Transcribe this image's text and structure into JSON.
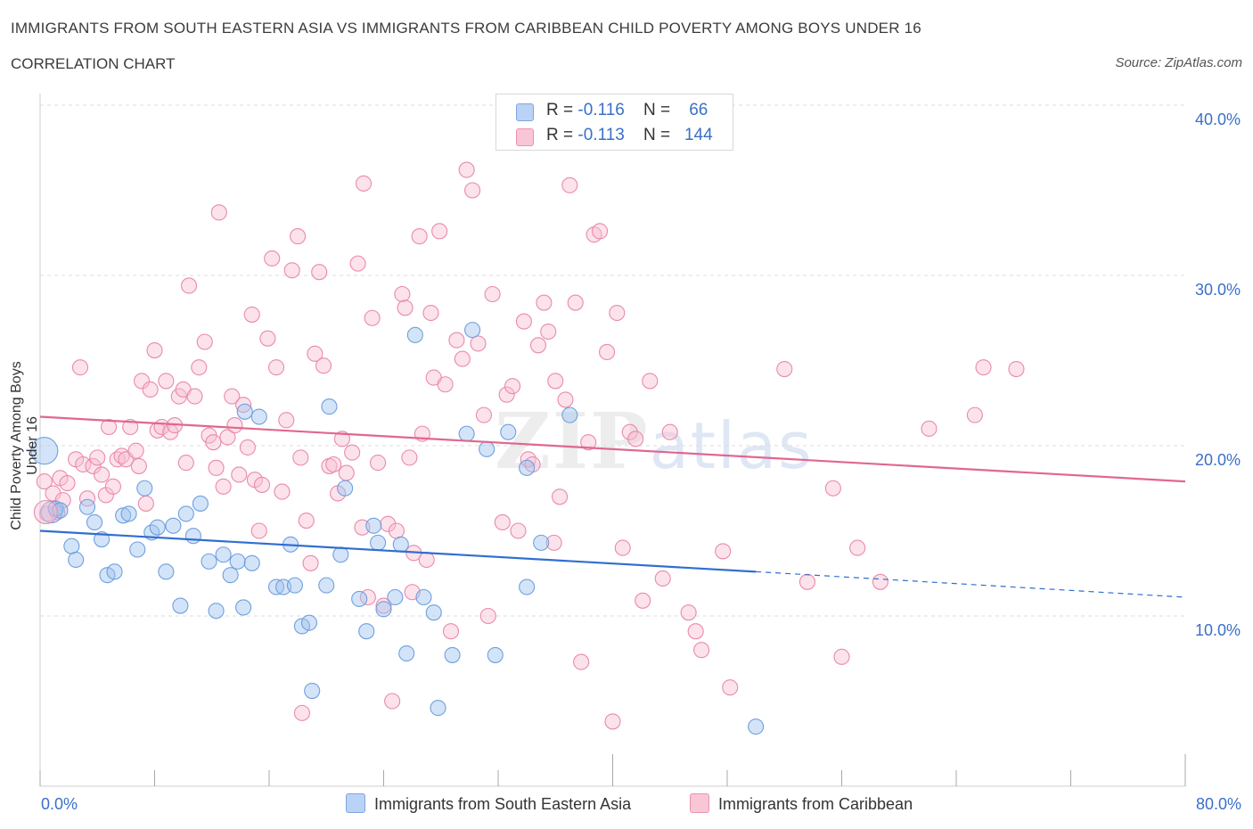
{
  "header": {
    "title": "IMMIGRANTS FROM SOUTH EASTERN ASIA VS IMMIGRANTS FROM CARIBBEAN CHILD POVERTY AMONG BOYS UNDER 16",
    "subtitle": "CORRELATION CHART",
    "source": "Source: ZipAtlas.com"
  },
  "watermark": {
    "main": "ZIP",
    "sub": "atlas"
  },
  "legend": {
    "rows": [
      {
        "r_label": "R =",
        "r_value": "-0.116",
        "n_label": "N =",
        "n_value": "66",
        "color": "#b9d2f5",
        "border": "#7ea6e0"
      },
      {
        "r_label": "R =",
        "r_value": "-0.113",
        "n_label": "N =",
        "n_value": "144",
        "color": "#f9c6d6",
        "border": "#ea93b0"
      }
    ]
  },
  "bottom_legend": [
    {
      "label": "Immigrants from South Eastern Asia",
      "color": "#b9d2f5",
      "border": "#7ea6e0"
    },
    {
      "label": "Immigrants from Caribbean",
      "color": "#f9c6d6",
      "border": "#ea93b0"
    }
  ],
  "colors": {
    "blue_fill": "rgba(160,195,240,0.45)",
    "blue_stroke": "#6f9fdf",
    "blue_line": "#2f6fcf",
    "pink_fill": "rgba(248,190,210,0.45)",
    "pink_stroke": "#e98aab",
    "pink_line": "#e0678f",
    "axis_text": "#3a6fc9"
  },
  "chart_data": {
    "type": "scatter",
    "title": "IMMIGRANTS FROM SOUTH EASTERN ASIA VS IMMIGRANTS FROM CARIBBEAN CHILD POVERTY AMONG BOYS UNDER 16",
    "xlabel": "",
    "ylabel": "Child Poverty Among Boys Under 16",
    "xlim": [
      0,
      80
    ],
    "ylim": [
      0,
      40
    ],
    "x_tick_labels": [
      "0.0%",
      "80.0%"
    ],
    "y_tick_labels": [
      "10.0%",
      "20.0%",
      "30.0%",
      "40.0%"
    ],
    "y_ticks": [
      10,
      20,
      30,
      40
    ],
    "grid": true,
    "legend_placement": "top-center",
    "series": [
      {
        "name": "Immigrants from South Eastern Asia",
        "trend": {
          "x": [
            0,
            50
          ],
          "y": [
            15.0,
            12.6
          ],
          "dashed_to": [
            80,
            11.1
          ]
        },
        "points": [
          [
            0.3,
            19.7
          ],
          [
            0.8,
            16.1
          ],
          [
            1.1,
            16.3
          ],
          [
            1.4,
            16.2
          ],
          [
            2.2,
            14.1
          ],
          [
            2.5,
            13.3
          ],
          [
            3.3,
            16.4
          ],
          [
            3.8,
            15.5
          ],
          [
            4.3,
            14.5
          ],
          [
            4.7,
            12.4
          ],
          [
            5.2,
            12.6
          ],
          [
            5.8,
            15.9
          ],
          [
            6.2,
            16.0
          ],
          [
            6.8,
            13.9
          ],
          [
            7.3,
            17.5
          ],
          [
            7.8,
            14.9
          ],
          [
            8.2,
            15.2
          ],
          [
            8.8,
            12.6
          ],
          [
            9.3,
            15.3
          ],
          [
            9.8,
            10.6
          ],
          [
            10.2,
            16.0
          ],
          [
            10.7,
            14.7
          ],
          [
            11.2,
            16.6
          ],
          [
            11.8,
            13.2
          ],
          [
            12.3,
            10.3
          ],
          [
            12.8,
            13.6
          ],
          [
            13.3,
            12.4
          ],
          [
            13.8,
            13.2
          ],
          [
            14.2,
            10.5
          ],
          [
            14.8,
            13.1
          ],
          [
            15.3,
            21.7
          ],
          [
            14.3,
            22.0
          ],
          [
            16.5,
            11.7
          ],
          [
            17.0,
            11.7
          ],
          [
            17.5,
            14.2
          ],
          [
            17.8,
            11.8
          ],
          [
            18.3,
            9.4
          ],
          [
            18.8,
            9.6
          ],
          [
            19.0,
            5.6
          ],
          [
            20.0,
            11.8
          ],
          [
            20.2,
            22.3
          ],
          [
            21.0,
            13.6
          ],
          [
            21.3,
            17.5
          ],
          [
            22.3,
            11.0
          ],
          [
            22.8,
            9.1
          ],
          [
            23.3,
            15.3
          ],
          [
            23.6,
            14.3
          ],
          [
            24.0,
            10.4
          ],
          [
            24.8,
            11.1
          ],
          [
            25.2,
            14.2
          ],
          [
            25.6,
            7.8
          ],
          [
            26.2,
            26.5
          ],
          [
            26.8,
            11.1
          ],
          [
            27.5,
            10.2
          ],
          [
            27.8,
            4.6
          ],
          [
            28.8,
            7.7
          ],
          [
            29.8,
            20.7
          ],
          [
            30.2,
            26.8
          ],
          [
            31.2,
            19.8
          ],
          [
            31.8,
            7.7
          ],
          [
            32.7,
            20.8
          ],
          [
            34.0,
            18.7
          ],
          [
            34.0,
            11.7
          ],
          [
            35.0,
            14.3
          ],
          [
            37.0,
            21.8
          ],
          [
            50.0,
            3.5
          ]
        ]
      },
      {
        "name": "Immigrants from Caribbean",
        "trend": {
          "x": [
            0,
            80
          ],
          "y": [
            21.7,
            17.9
          ]
        },
        "points": [
          [
            0.3,
            17.9
          ],
          [
            0.5,
            16.0
          ],
          [
            0.9,
            17.2
          ],
          [
            1.2,
            16.1
          ],
          [
            1.4,
            18.1
          ],
          [
            1.6,
            16.8
          ],
          [
            1.9,
            17.8
          ],
          [
            2.5,
            19.2
          ],
          [
            2.8,
            24.6
          ],
          [
            3.0,
            18.9
          ],
          [
            3.3,
            16.9
          ],
          [
            3.7,
            18.8
          ],
          [
            4.0,
            19.3
          ],
          [
            4.3,
            18.3
          ],
          [
            4.6,
            17.1
          ],
          [
            4.8,
            21.1
          ],
          [
            5.1,
            17.6
          ],
          [
            5.4,
            19.2
          ],
          [
            5.7,
            19.4
          ],
          [
            6.0,
            19.2
          ],
          [
            6.3,
            21.1
          ],
          [
            6.7,
            19.7
          ],
          [
            6.9,
            18.8
          ],
          [
            7.1,
            23.8
          ],
          [
            7.4,
            16.6
          ],
          [
            7.7,
            23.3
          ],
          [
            8.0,
            25.6
          ],
          [
            8.2,
            20.9
          ],
          [
            8.5,
            21.1
          ],
          [
            8.8,
            23.8
          ],
          [
            9.1,
            20.8
          ],
          [
            9.4,
            21.2
          ],
          [
            9.7,
            22.9
          ],
          [
            10.0,
            23.3
          ],
          [
            10.2,
            19.0
          ],
          [
            10.4,
            29.4
          ],
          [
            10.8,
            22.9
          ],
          [
            11.1,
            24.6
          ],
          [
            11.5,
            26.1
          ],
          [
            11.8,
            20.6
          ],
          [
            12.1,
            20.2
          ],
          [
            12.3,
            18.7
          ],
          [
            12.5,
            33.7
          ],
          [
            12.8,
            17.6
          ],
          [
            13.1,
            20.5
          ],
          [
            13.4,
            22.9
          ],
          [
            13.6,
            21.2
          ],
          [
            13.9,
            18.3
          ],
          [
            14.2,
            22.4
          ],
          [
            14.5,
            19.9
          ],
          [
            14.8,
            27.7
          ],
          [
            15.0,
            18.0
          ],
          [
            15.3,
            15.0
          ],
          [
            15.5,
            17.7
          ],
          [
            15.9,
            26.3
          ],
          [
            16.2,
            31.0
          ],
          [
            16.5,
            24.6
          ],
          [
            16.9,
            17.3
          ],
          [
            17.2,
            21.5
          ],
          [
            17.6,
            30.3
          ],
          [
            18.0,
            32.3
          ],
          [
            18.3,
            4.3
          ],
          [
            18.6,
            15.6
          ],
          [
            18.9,
            13.1
          ],
          [
            19.2,
            25.4
          ],
          [
            19.5,
            30.2
          ],
          [
            19.8,
            24.7
          ],
          [
            20.2,
            18.8
          ],
          [
            20.5,
            18.9
          ],
          [
            20.8,
            17.2
          ],
          [
            21.1,
            20.4
          ],
          [
            21.4,
            18.4
          ],
          [
            21.8,
            19.6
          ],
          [
            22.2,
            30.7
          ],
          [
            22.6,
            35.4
          ],
          [
            22.9,
            11.1
          ],
          [
            23.2,
            27.5
          ],
          [
            23.6,
            19.0
          ],
          [
            24.0,
            10.6
          ],
          [
            24.3,
            15.4
          ],
          [
            24.6,
            5.0
          ],
          [
            24.9,
            15.0
          ],
          [
            25.3,
            28.9
          ],
          [
            25.5,
            28.1
          ],
          [
            25.8,
            19.3
          ],
          [
            26.1,
            13.7
          ],
          [
            26.5,
            32.3
          ],
          [
            26.7,
            20.7
          ],
          [
            27.0,
            13.3
          ],
          [
            27.3,
            27.8
          ],
          [
            27.5,
            24.0
          ],
          [
            27.9,
            32.6
          ],
          [
            28.3,
            23.6
          ],
          [
            28.7,
            9.1
          ],
          [
            29.1,
            26.2
          ],
          [
            29.5,
            25.1
          ],
          [
            29.8,
            36.2
          ],
          [
            30.2,
            35.0
          ],
          [
            30.6,
            26.0
          ],
          [
            31.0,
            21.8
          ],
          [
            31.3,
            10.0
          ],
          [
            31.6,
            28.9
          ],
          [
            32.3,
            15.5
          ],
          [
            32.6,
            23.0
          ],
          [
            33.0,
            23.5
          ],
          [
            33.4,
            15.0
          ],
          [
            33.8,
            27.3
          ],
          [
            34.1,
            19.2
          ],
          [
            34.4,
            18.9
          ],
          [
            34.8,
            25.9
          ],
          [
            35.2,
            28.4
          ],
          [
            35.5,
            26.7
          ],
          [
            35.9,
            14.3
          ],
          [
            36.3,
            17.0
          ],
          [
            36.7,
            22.7
          ],
          [
            37.0,
            35.3
          ],
          [
            37.4,
            28.4
          ],
          [
            37.8,
            7.3
          ],
          [
            38.3,
            20.2
          ],
          [
            38.7,
            32.4
          ],
          [
            39.1,
            32.6
          ],
          [
            39.6,
            25.5
          ],
          [
            40.0,
            3.8
          ],
          [
            40.3,
            27.8
          ],
          [
            40.7,
            14.0
          ],
          [
            41.2,
            20.8
          ],
          [
            41.6,
            20.4
          ],
          [
            42.1,
            10.9
          ],
          [
            42.6,
            23.8
          ],
          [
            43.5,
            12.2
          ],
          [
            44.0,
            20.8
          ],
          [
            45.3,
            10.2
          ],
          [
            45.8,
            9.1
          ],
          [
            46.2,
            8.0
          ],
          [
            47.7,
            13.8
          ],
          [
            48.2,
            5.8
          ],
          [
            52.0,
            24.5
          ],
          [
            53.6,
            12.0
          ],
          [
            55.4,
            17.5
          ],
          [
            56.0,
            7.6
          ],
          [
            57.1,
            14.0
          ],
          [
            58.7,
            12.0
          ],
          [
            62.1,
            21.0
          ],
          [
            65.3,
            21.8
          ],
          [
            65.9,
            24.6
          ],
          [
            68.2,
            24.5
          ],
          [
            36.0,
            23.8
          ],
          [
            22.5,
            15.2
          ],
          [
            18.2,
            19.3
          ],
          [
            26.0,
            11.4
          ]
        ]
      }
    ]
  }
}
